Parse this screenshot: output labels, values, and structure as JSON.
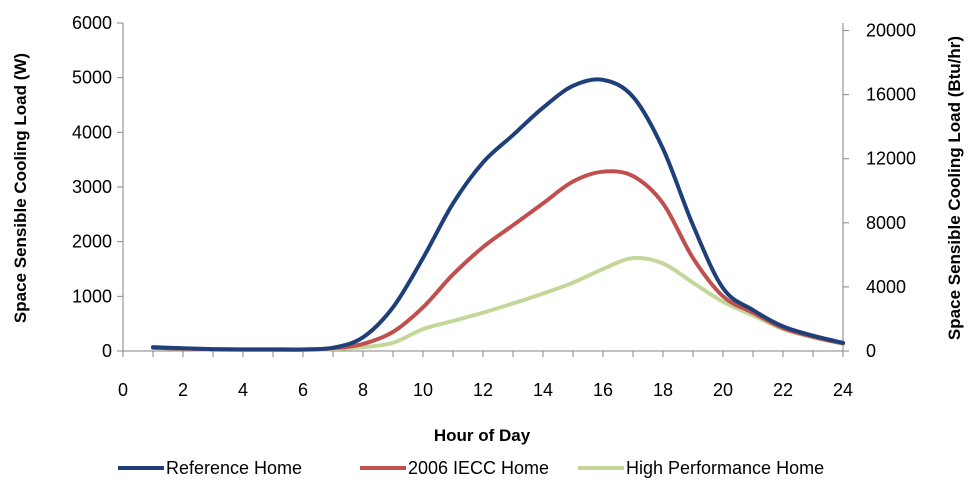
{
  "chart_data": {
    "type": "line",
    "title": "",
    "xlabel": "Hour of Day",
    "ylabel_left": "Space Sensible Cooling Load (W)",
    "ylabel_right": "Space Sensible Cooling Load (Btu/hr)",
    "xlim": [
      0,
      24
    ],
    "ylim_left": [
      0,
      6000
    ],
    "ylim_right": [
      0,
      20472
    ],
    "x_ticks": [
      "0",
      "2",
      "4",
      "6",
      "8",
      "10",
      "12",
      "14",
      "16",
      "18",
      "20",
      "22",
      "24"
    ],
    "y_ticks_left": [
      "0",
      "1000",
      "2000",
      "3000",
      "4000",
      "5000",
      "6000"
    ],
    "y_ticks_right": [
      "0",
      "4000",
      "8000",
      "12000",
      "16000",
      "20000"
    ],
    "grid": "none",
    "legend_position": "bottom",
    "series": [
      {
        "name": "Reference Home",
        "color": "#1f3f7a",
        "x": [
          1,
          2,
          3,
          4,
          5,
          6,
          7,
          8,
          9,
          10,
          11,
          12,
          13,
          14,
          15,
          16,
          17,
          18,
          19,
          20,
          21,
          22,
          23,
          24
        ],
        "values": [
          70,
          50,
          35,
          30,
          30,
          30,
          60,
          250,
          800,
          1700,
          2700,
          3450,
          3950,
          4450,
          4850,
          4960,
          4650,
          3700,
          2300,
          1150,
          750,
          450,
          280,
          150
        ]
      },
      {
        "name": "2006 IECC Home",
        "color": "#c0504d",
        "x": [
          1,
          2,
          3,
          4,
          5,
          6,
          7,
          8,
          9,
          10,
          11,
          12,
          13,
          14,
          15,
          16,
          17,
          18,
          19,
          20,
          21,
          22,
          23,
          24
        ],
        "values": [
          60,
          45,
          30,
          25,
          25,
          25,
          50,
          130,
          350,
          800,
          1400,
          1900,
          2300,
          2700,
          3100,
          3280,
          3200,
          2700,
          1700,
          1000,
          700,
          420,
          260,
          140
        ]
      },
      {
        "name": "High Performance Home",
        "color": "#c4d79b",
        "x": [
          1,
          2,
          3,
          4,
          5,
          6,
          7,
          8,
          9,
          10,
          11,
          12,
          13,
          14,
          15,
          16,
          17,
          18,
          19,
          20,
          21,
          22,
          23,
          24
        ],
        "values": [
          55,
          40,
          25,
          20,
          20,
          20,
          35,
          70,
          150,
          400,
          550,
          700,
          870,
          1050,
          1250,
          1500,
          1700,
          1600,
          1250,
          900,
          650,
          400,
          250,
          130
        ]
      }
    ]
  }
}
